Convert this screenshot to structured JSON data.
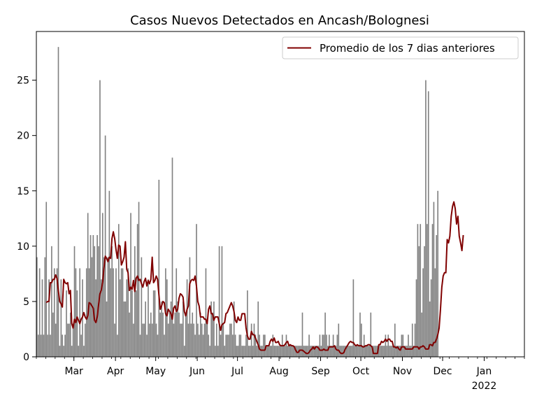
{
  "chart_data": {
    "type": "bar",
    "title": "Casos Nuevos Detectados en Ancash/Bolognesi",
    "xlabel": "",
    "ylabel": "",
    "ylim": [
      0,
      29.4
    ],
    "x_range": [
      "2021-02-01",
      "2022-01-31"
    ],
    "y_ticks": [
      0,
      5,
      10,
      15,
      20,
      25
    ],
    "x_ticks": [
      {
        "date": "2021-03-01",
        "label": "Mar"
      },
      {
        "date": "2021-04-01",
        "label": "Apr"
      },
      {
        "date": "2021-05-01",
        "label": "May"
      },
      {
        "date": "2021-06-01",
        "label": "Jun"
      },
      {
        "date": "2021-07-01",
        "label": "Jul"
      },
      {
        "date": "2021-08-01",
        "label": "Aug"
      },
      {
        "date": "2021-09-01",
        "label": "Sep"
      },
      {
        "date": "2021-10-01",
        "label": "Oct"
      },
      {
        "date": "2021-11-01",
        "label": "Nov"
      },
      {
        "date": "2021-12-01",
        "label": "Dec"
      },
      {
        "date": "2022-01-01",
        "label": "Jan",
        "sublabel": "2022"
      }
    ],
    "grid": false,
    "legend": {
      "position": "top-right",
      "entries": [
        "Promedio de los 7 dias anteriores"
      ]
    },
    "bar_color": "#808080",
    "line_color": "#800000",
    "series": [
      {
        "type": "bar",
        "start_date": "2021-02-01",
        "values": [
          9,
          2,
          8,
          2,
          7,
          2,
          9,
          14,
          2,
          7,
          2,
          10,
          4,
          8,
          3,
          8,
          28,
          1,
          7,
          2,
          1,
          2,
          6,
          3,
          3,
          4,
          1,
          3,
          10,
          8,
          6,
          1,
          8,
          2,
          7,
          1,
          3,
          8,
          13,
          8,
          11,
          9,
          11,
          10,
          7,
          11,
          10,
          25,
          7,
          13,
          9,
          20,
          5,
          9,
          15,
          8,
          10,
          8,
          3,
          8,
          2,
          12,
          7,
          8,
          8,
          5,
          5,
          7,
          8,
          4,
          13,
          6,
          3,
          10,
          6,
          12,
          14,
          2,
          9,
          3,
          3,
          5,
          2,
          7,
          3,
          4,
          3,
          6,
          6,
          3,
          2,
          16,
          4,
          5,
          4,
          2,
          8,
          7,
          3,
          4,
          5,
          18,
          3,
          4,
          8,
          5,
          4,
          3,
          3,
          5,
          1,
          4,
          7,
          3,
          9,
          3,
          4,
          3,
          2,
          12,
          3,
          2,
          4,
          3,
          2,
          3,
          8,
          3,
          2,
          1,
          5,
          4,
          5,
          1,
          3,
          1,
          10,
          2,
          10,
          3,
          1,
          2,
          2,
          2,
          3,
          3,
          2,
          5,
          2,
          1,
          1,
          2,
          2,
          1,
          1,
          1,
          2,
          6,
          1,
          1,
          3,
          1,
          3,
          2,
          1,
          5,
          2,
          1,
          1,
          2,
          2,
          1,
          1,
          1,
          1,
          1,
          2,
          1,
          1,
          1,
          1,
          1,
          1,
          2,
          1,
          1,
          2,
          1,
          1,
          1,
          1,
          1,
          1,
          1,
          1,
          1,
          1,
          1,
          4,
          1,
          1,
          1,
          1,
          2,
          1,
          1,
          1,
          1,
          1,
          1,
          1,
          2,
          1,
          2,
          2,
          4,
          2,
          1,
          2,
          1,
          1,
          2,
          1,
          1,
          2,
          3,
          1,
          1,
          1,
          1,
          1,
          1,
          1,
          1,
          1,
          1,
          7,
          1,
          1,
          1,
          1,
          4,
          3,
          1,
          2,
          1,
          1,
          1,
          1,
          4,
          1,
          1,
          1,
          1,
          1,
          1,
          1,
          1,
          1,
          1,
          2,
          1,
          2,
          1,
          1,
          1,
          1,
          3,
          1,
          1,
          1,
          1,
          2,
          2,
          1,
          1,
          1,
          2,
          1,
          1,
          3,
          1,
          3,
          7,
          12,
          10,
          12,
          4,
          8,
          10,
          25,
          12,
          24,
          5,
          7,
          12,
          14,
          8,
          11,
          15
        ],
        "_note_removed": true
      },
      {
        "type": "line",
        "name": "Promedio de los 7 dias anteriores",
        "start_date": "2021-02-08",
        "values": [
          4.9,
          5.0,
          5.0,
          6.7,
          6.7,
          7.0,
          7.0,
          7.4,
          7.1,
          6.0,
          5.0,
          4.8,
          4.5,
          7.0,
          6.7,
          6.6,
          6.7,
          5.7,
          6.0,
          3.0,
          2.6,
          3.4,
          3.1,
          3.6,
          3.3,
          3.0,
          3.4,
          3.6,
          4.0,
          3.6,
          3.4,
          3.7,
          4.9,
          4.8,
          4.6,
          4.4,
          3.3,
          3.1,
          3.6,
          4.7,
          5.7,
          6.0,
          6.7,
          8.0,
          9.1,
          8.9,
          8.6,
          9.0,
          8.9,
          10.7,
          11.3,
          10.7,
          9.7,
          8.9,
          10.1,
          10.0,
          8.3,
          8.6,
          9.0,
          10.4,
          7.9,
          7.6,
          6.0,
          6.3,
          6.1,
          6.9,
          5.9,
          7.1,
          7.3,
          6.9,
          7.0,
          6.6,
          6.3,
          6.8,
          7.1,
          6.4,
          6.9,
          6.6,
          7.0,
          9.0,
          6.7,
          6.9,
          7.3,
          7.0,
          5.6,
          4.3,
          4.6,
          5.0,
          4.9,
          3.9,
          3.7,
          4.3,
          4.1,
          3.9,
          3.4,
          4.4,
          4.6,
          4.1,
          4.3,
          5.3,
          5.7,
          5.6,
          5.4,
          4.1,
          3.7,
          4.3,
          4.6,
          6.6,
          6.9,
          7.0,
          6.9,
          7.3,
          6.4,
          5.0,
          4.6,
          3.6,
          3.6,
          3.6,
          3.4,
          3.4,
          3.0,
          4.3,
          4.6,
          3.9,
          3.9,
          3.3,
          3.6,
          3.6,
          3.6,
          3.0,
          2.4,
          2.9,
          3.0,
          3.1,
          3.9,
          4.0,
          4.3,
          4.6,
          4.9,
          4.6,
          4.1,
          3.3,
          3.1,
          3.6,
          3.3,
          3.3,
          3.9,
          3.9,
          3.9,
          2.6,
          1.9,
          1.6,
          1.6,
          2.3,
          2.0,
          2.0,
          1.7,
          1.4,
          1.1,
          0.7,
          0.6,
          0.6,
          0.6,
          0.6,
          1.0,
          1.0,
          1.0,
          1.4,
          1.6,
          1.4,
          1.7,
          1.3,
          1.3,
          1.4,
          1.1,
          1.0,
          1.0,
          1.0,
          1.1,
          1.3,
          1.4,
          1.0,
          1.1,
          1.0,
          1.0,
          0.9,
          0.6,
          0.4,
          0.4,
          0.6,
          0.6,
          0.6,
          0.5,
          0.4,
          0.3,
          0.3,
          0.4,
          0.6,
          0.7,
          0.9,
          0.7,
          0.9,
          0.9,
          0.8,
          0.6,
          0.6,
          0.6,
          0.7,
          0.6,
          0.6,
          0.6,
          0.9,
          0.9,
          0.9,
          0.9,
          1.0,
          0.7,
          0.6,
          0.6,
          0.4,
          0.3,
          0.3,
          0.4,
          0.7,
          0.9,
          1.1,
          1.3,
          1.4,
          1.3,
          1.3,
          1.1,
          1.0,
          1.1,
          1.0,
          1.0,
          1.0,
          0.9,
          0.9,
          1.0,
          1.0,
          1.1,
          1.1,
          1.0,
          0.9,
          0.3,
          0.3,
          0.3,
          0.3,
          1.1,
          1.1,
          1.4,
          1.3,
          1.4,
          1.6,
          1.4,
          1.6,
          1.6,
          1.4,
          1.4,
          0.9,
          0.9,
          0.8,
          0.9,
          0.7,
          0.6,
          0.9,
          0.9,
          0.9,
          0.7,
          0.7,
          0.7,
          0.7,
          0.7,
          0.7,
          0.9,
          0.9,
          0.9,
          0.9,
          0.7,
          0.9,
          0.9,
          1.0,
          0.9,
          0.7,
          0.7,
          0.7,
          1.1,
          1.1,
          1.0,
          1.3,
          1.3,
          1.6,
          2.0,
          2.6,
          4.3,
          6.3,
          7.3,
          7.6,
          7.6,
          10.6,
          10.3,
          10.9,
          12.7,
          13.6,
          14.0,
          13.4,
          12.0,
          12.7,
          10.9,
          10.3,
          9.6,
          11.0
        ]
      }
    ]
  }
}
